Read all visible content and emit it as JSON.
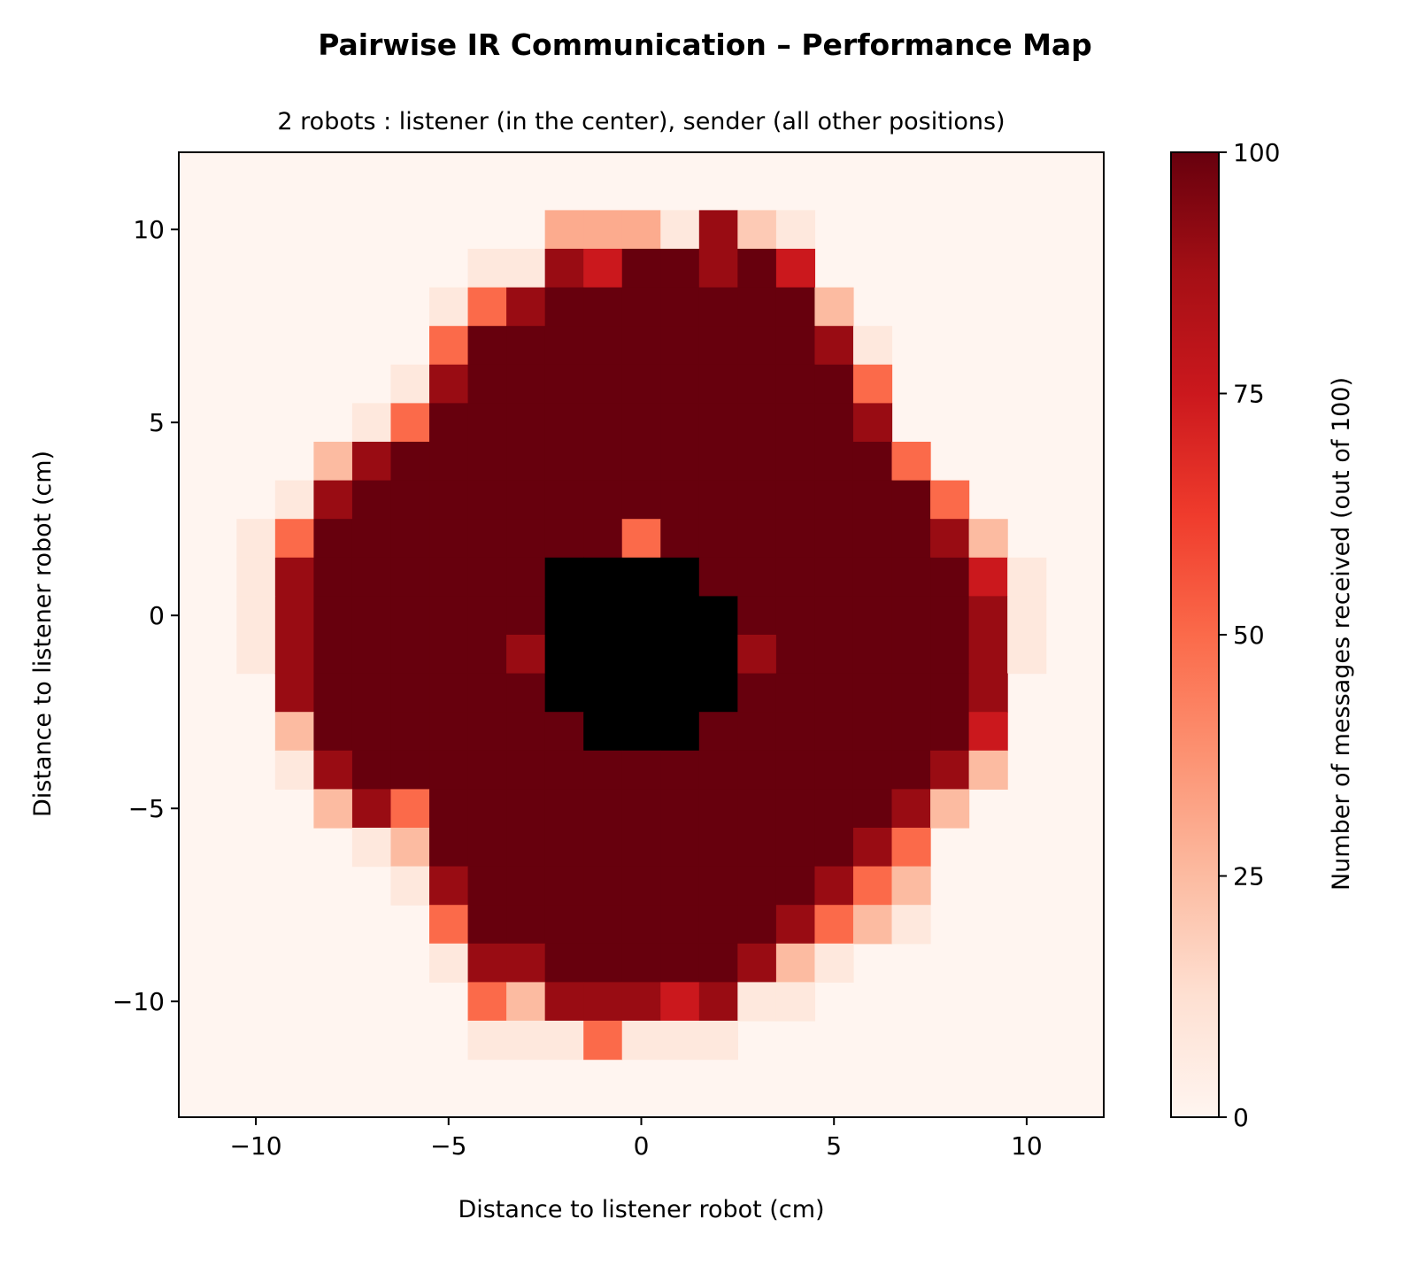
{
  "chart_data": {
    "type": "heatmap",
    "title": "Pairwise IR Communication – Performance Map",
    "subtitle": "2 robots : listener (in the center), sender (all other positions)",
    "xlabel": "Distance to listener robot (cm)",
    "ylabel": "Distance to listener robot (cm)",
    "xlim": [
      -12,
      12
    ],
    "ylim": [
      -13,
      12
    ],
    "xticks": [
      -10,
      -5,
      0,
      5,
      10
    ],
    "yticks": [
      -10,
      -5,
      0,
      5,
      10
    ],
    "xtick_labels": [
      "−10",
      "−5",
      "0",
      "5",
      "10"
    ],
    "ytick_labels": [
      "−10",
      "−5",
      "0",
      "5",
      "10"
    ],
    "colorbar": {
      "label": "Number of messages received (out of 100)",
      "range": [
        0,
        100
      ],
      "ticks": [
        0,
        25,
        50,
        75,
        100
      ],
      "tick_labels": [
        "0",
        "25",
        "50",
        "75",
        "100"
      ],
      "colormap": "Reds"
    },
    "default_value": 0,
    "blocked_color": "#000000",
    "blocked_cells": [
      [
        -1,
        1
      ],
      [
        0,
        1
      ],
      [
        1,
        1
      ],
      [
        -2,
        0
      ],
      [
        -1,
        0
      ],
      [
        0,
        0
      ],
      [
        1,
        0
      ],
      [
        2,
        0
      ],
      [
        -2,
        -1
      ],
      [
        -1,
        -1
      ],
      [
        0,
        -1
      ],
      [
        1,
        -1
      ],
      [
        2,
        -1
      ],
      [
        -2,
        -2
      ],
      [
        -1,
        -2
      ],
      [
        0,
        -2
      ],
      [
        1,
        -2
      ],
      [
        2,
        -2
      ],
      [
        -1,
        -3
      ],
      [
        0,
        -3
      ],
      [
        1,
        -3
      ]
    ],
    "rows": [
      {
        "y": 10,
        "x_start": -2,
        "values": [
          30,
          30,
          30,
          8,
          90,
          20,
          8
        ]
      },
      {
        "y": 9,
        "x_start": -4,
        "values": [
          8,
          8,
          90,
          75,
          100,
          100,
          90,
          100,
          75
        ]
      },
      {
        "y": 8,
        "x_start": -5,
        "values": [
          8,
          50,
          90,
          100,
          100,
          100,
          100,
          100,
          100,
          100,
          25
        ]
      },
      {
        "y": 7,
        "x_start": -5,
        "values": [
          50,
          100,
          100,
          100,
          100,
          100,
          100,
          100,
          100,
          100,
          90,
          8
        ]
      },
      {
        "y": 6,
        "x_start": -6,
        "values": [
          8,
          90,
          100,
          100,
          100,
          100,
          100,
          100,
          100,
          100,
          100,
          100,
          50
        ]
      },
      {
        "y": 5,
        "x_start": -7,
        "values": [
          8,
          50,
          100,
          100,
          100,
          100,
          100,
          100,
          100,
          100,
          100,
          100,
          100,
          90
        ]
      },
      {
        "y": 4,
        "x_start": -8,
        "values": [
          25,
          90,
          100,
          100,
          100,
          100,
          100,
          100,
          100,
          100,
          100,
          100,
          100,
          100,
          100,
          50
        ]
      },
      {
        "y": 3,
        "x_start": -9,
        "values": [
          8,
          90,
          100,
          100,
          100,
          100,
          100,
          100,
          100,
          100,
          100,
          100,
          100,
          100,
          100,
          100,
          100,
          50
        ]
      },
      {
        "y": 2,
        "x_start": -10,
        "values": [
          8,
          50,
          100,
          100,
          100,
          100,
          100,
          100,
          100,
          100,
          50,
          100,
          100,
          100,
          100,
          100,
          100,
          100,
          90,
          25
        ]
      },
      {
        "y": 1,
        "x_start": -10,
        "values": [
          8,
          90,
          100,
          100,
          100,
          100,
          100,
          100,
          null,
          null,
          null,
          100,
          100,
          100,
          100,
          100,
          100,
          100,
          100,
          75,
          8
        ]
      },
      {
        "y": 0,
        "x_start": -10,
        "values": [
          8,
          90,
          100,
          100,
          100,
          100,
          100,
          100,
          null,
          null,
          null,
          null,
          null,
          100,
          100,
          100,
          100,
          100,
          100,
          90,
          8
        ]
      },
      {
        "y": -1,
        "x_start": -10,
        "values": [
          8,
          90,
          100,
          100,
          100,
          100,
          100,
          90,
          null,
          null,
          null,
          null,
          null,
          90,
          100,
          100,
          100,
          100,
          100,
          90,
          8
        ]
      },
      {
        "y": -2,
        "x_start": -9,
        "values": [
          90,
          100,
          100,
          100,
          100,
          100,
          100,
          null,
          null,
          null,
          null,
          null,
          100,
          100,
          100,
          100,
          100,
          100,
          90
        ]
      },
      {
        "y": -3,
        "x_start": -9,
        "values": [
          25,
          100,
          100,
          100,
          100,
          100,
          100,
          100,
          null,
          null,
          null,
          100,
          100,
          100,
          100,
          100,
          100,
          100,
          75
        ]
      },
      {
        "y": -4,
        "x_start": -9,
        "values": [
          8,
          90,
          100,
          100,
          100,
          100,
          100,
          100,
          100,
          100,
          100,
          100,
          100,
          100,
          100,
          100,
          100,
          90,
          25
        ]
      },
      {
        "y": -5,
        "x_start": -8,
        "values": [
          25,
          90,
          50,
          100,
          100,
          100,
          100,
          100,
          100,
          100,
          100,
          100,
          100,
          100,
          100,
          90,
          25
        ]
      },
      {
        "y": -6,
        "x_start": -7,
        "values": [
          8,
          25,
          100,
          100,
          100,
          100,
          100,
          100,
          100,
          100,
          100,
          100,
          100,
          90,
          50
        ]
      },
      {
        "y": -7,
        "x_start": -6,
        "values": [
          8,
          90,
          100,
          100,
          100,
          100,
          100,
          100,
          100,
          100,
          100,
          90,
          50,
          25
        ]
      },
      {
        "y": -8,
        "x_start": -5,
        "values": [
          50,
          100,
          100,
          100,
          100,
          100,
          100,
          100,
          100,
          90,
          50,
          25,
          8
        ]
      },
      {
        "y": -9,
        "x_start": -5,
        "values": [
          8,
          90,
          90,
          100,
          100,
          100,
          100,
          100,
          90,
          25,
          8
        ]
      },
      {
        "y": -10,
        "x_start": -4,
        "values": [
          50,
          25,
          90,
          90,
          90,
          75,
          90,
          8,
          8
        ]
      },
      {
        "y": -11,
        "x_start": -4,
        "values": [
          8,
          8,
          8,
          50,
          8,
          8,
          8
        ]
      }
    ]
  }
}
